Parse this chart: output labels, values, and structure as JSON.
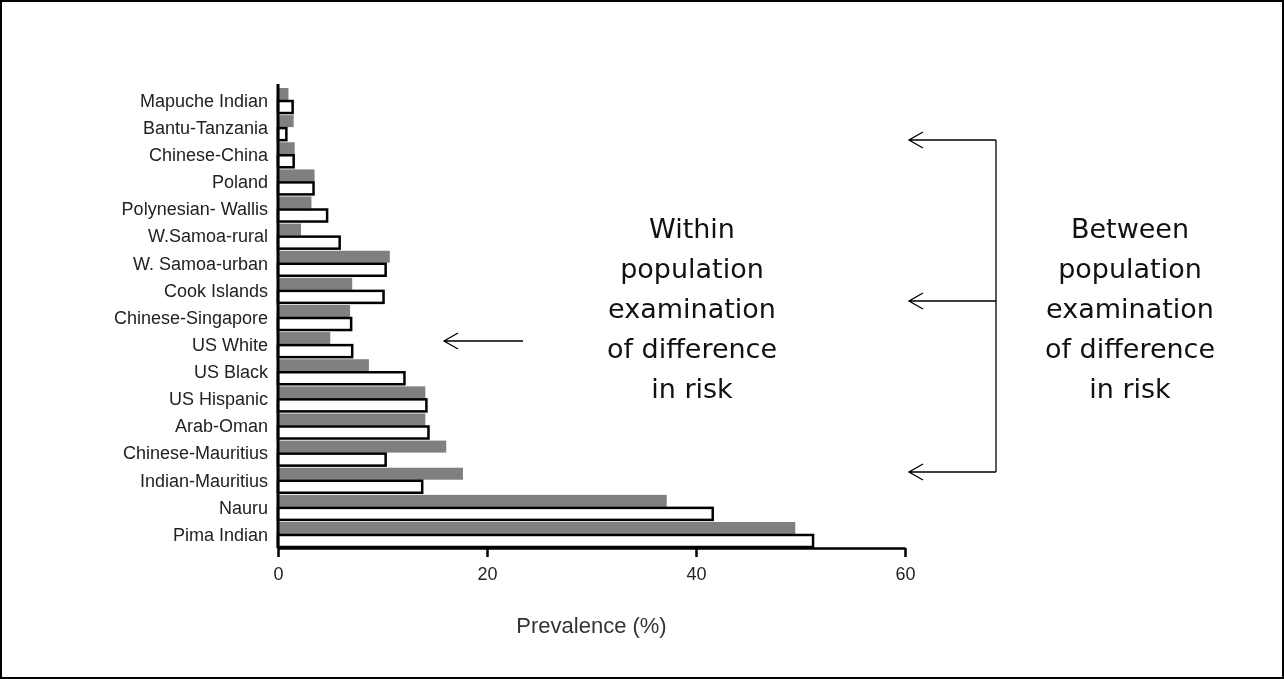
{
  "chart_data": {
    "type": "bar",
    "orientation": "horizontal",
    "xlabel": "Prevalence (%)",
    "categories": [
      "Mapuche Indian",
      "Bantu-Tanzania",
      "Chinese-China",
      "Poland",
      "Polynesian- Wallis",
      "W.Samoa-rural",
      "W. Samoa-urban",
      "Cook Islands",
      "Chinese-Singapore",
      "US White ",
      "US Black",
      "US Hispanic",
      "Arab-Oman",
      "Chinese-Mauritius",
      "Indian-Mauritius",
      "Nauru",
      "Pima Indian"
    ],
    "series": [
      {
        "color": "#808080",
        "values": [
          1.0,
          1.5,
          1.6,
          3.5,
          3.2,
          2.2,
          10.7,
          7.1,
          6.9,
          5.0,
          8.7,
          14.1,
          14.1,
          16.1,
          17.7,
          37.2,
          49.5
        ]
      },
      {
        "color": "#ffffff",
        "values": [
          1.4,
          0.8,
          1.5,
          3.4,
          4.7,
          5.9,
          10.3,
          10.1,
          7.0,
          7.1,
          12.1,
          14.2,
          14.4,
          10.3,
          13.8,
          41.6,
          51.2
        ]
      }
    ],
    "xlim": [
      0,
      60
    ],
    "xticks": [
      0,
      20,
      40,
      60
    ],
    "annotations": [
      "Within population examination of difference in risk",
      "Between population examination of difference in risk"
    ]
  }
}
